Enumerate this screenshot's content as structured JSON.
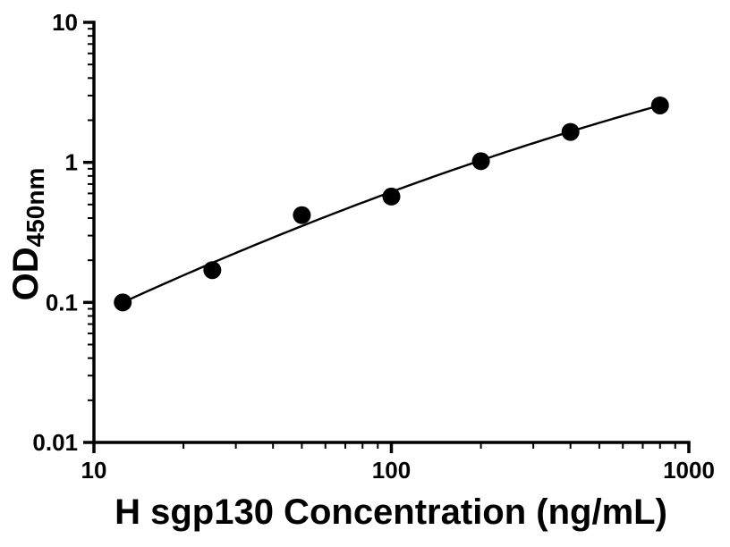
{
  "chart_data": {
    "type": "scatter",
    "title": "",
    "xlabel": "H sgp130 Concentration (ng/mL)",
    "ylabel": {
      "main": "OD",
      "sub": "450nm"
    },
    "x_scale": "log",
    "y_scale": "log",
    "xlim": [
      10,
      1000
    ],
    "ylim": [
      0.01,
      10
    ],
    "x_ticks": [
      10,
      100,
      1000
    ],
    "x_tick_labels": [
      "10",
      "100",
      "1000"
    ],
    "y_ticks": [
      0.01,
      0.1,
      1,
      10
    ],
    "y_tick_labels": [
      "0.01",
      "0.1",
      "1",
      "10"
    ],
    "minor_ticks": true,
    "grid": false,
    "legend": null,
    "background_color": "#ffffff",
    "axis_color": "#000000",
    "points": {
      "x": [
        12.5,
        25,
        50,
        100,
        200,
        400,
        800
      ],
      "y": [
        0.1,
        0.17,
        0.42,
        0.57,
        1.02,
        1.65,
        2.55
      ]
    },
    "fit_curve": {
      "type": "quadratic-loglog",
      "description": "log10(y) = c0 + c1*(log10(x)-2) + c2*(log10(x)-2)^2",
      "c": [
        -0.2106,
        0.779,
        -0.1054
      ],
      "x_range": [
        12.5,
        800
      ],
      "color": "#000000"
    },
    "marker": {
      "shape": "circle",
      "color": "#000000",
      "radius": 10
    }
  }
}
